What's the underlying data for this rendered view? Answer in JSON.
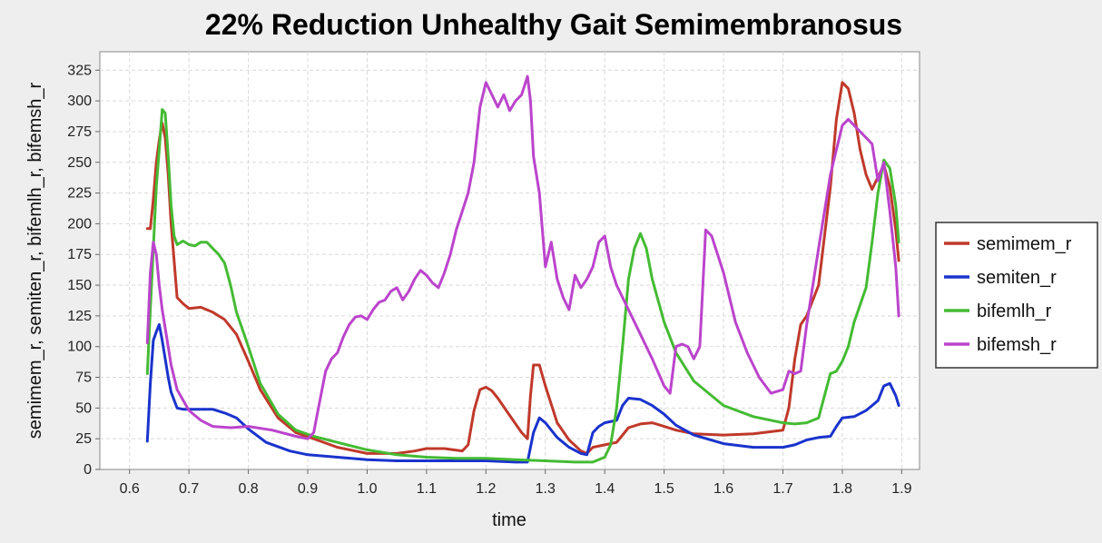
{
  "chart_data": {
    "type": "line",
    "title": "22% Reduction Unhealthy Gait Semimembranosus",
    "xlabel": "time",
    "ylabel": "semimem_r, semiten_r, bifemlh_r, bifemsh_r",
    "xlim": [
      0.55,
      1.93
    ],
    "ylim": [
      0,
      340
    ],
    "xticks": [
      0.6,
      0.7,
      0.8,
      0.9,
      1.0,
      1.1,
      1.2,
      1.3,
      1.4,
      1.5,
      1.6,
      1.7,
      1.8,
      1.9
    ],
    "xtick_labels": [
      "0.6",
      "0.7",
      "0.8",
      "0.9",
      "1.0",
      "1.1",
      "1.2",
      "1.3",
      "1.4",
      "1.5",
      "1.6",
      "1.7",
      "1.8",
      "1.9"
    ],
    "yticks": [
      0,
      25,
      50,
      75,
      100,
      125,
      150,
      175,
      200,
      225,
      250,
      275,
      300,
      325
    ],
    "ytick_labels": [
      "0",
      "25",
      "50",
      "75",
      "100",
      "125",
      "150",
      "175",
      "200",
      "225",
      "250",
      "275",
      "300",
      "325"
    ],
    "grid": true,
    "legend_position": "right",
    "series": [
      {
        "name": "semimem_r",
        "color": "#c0392b",
        "x": [
          0.63,
          0.635,
          0.64,
          0.645,
          0.65,
          0.655,
          0.66,
          0.665,
          0.67,
          0.68,
          0.69,
          0.7,
          0.72,
          0.74,
          0.76,
          0.78,
          0.8,
          0.82,
          0.85,
          0.88,
          0.91,
          0.95,
          1.0,
          1.05,
          1.08,
          1.1,
          1.13,
          1.16,
          1.17,
          1.18,
          1.19,
          1.2,
          1.21,
          1.22,
          1.24,
          1.26,
          1.27,
          1.275,
          1.28,
          1.29,
          1.3,
          1.32,
          1.34,
          1.36,
          1.37,
          1.38,
          1.4,
          1.42,
          1.44,
          1.46,
          1.48,
          1.5,
          1.52,
          1.55,
          1.6,
          1.65,
          1.7,
          1.71,
          1.72,
          1.73,
          1.74,
          1.76,
          1.78,
          1.79,
          1.8,
          1.81,
          1.82,
          1.83,
          1.84,
          1.85,
          1.86,
          1.87,
          1.88,
          1.89,
          1.895
        ],
        "y": [
          196,
          196,
          220,
          250,
          268,
          282,
          270,
          240,
          200,
          140,
          135,
          131,
          132,
          128,
          122,
          110,
          88,
          65,
          42,
          30,
          25,
          18,
          13,
          13,
          15,
          17,
          17,
          15,
          20,
          48,
          65,
          67,
          64,
          58,
          44,
          30,
          25,
          60,
          85,
          85,
          68,
          38,
          24,
          15,
          13,
          18,
          20,
          22,
          34,
          37,
          38,
          35,
          32,
          29,
          28,
          29,
          32,
          50,
          90,
          118,
          125,
          150,
          230,
          285,
          315,
          310,
          290,
          260,
          240,
          228,
          238,
          248,
          230,
          195,
          170
        ]
      },
      {
        "name": "semiten_r",
        "color": "#1a33cc",
        "x": [
          0.63,
          0.635,
          0.64,
          0.645,
          0.65,
          0.655,
          0.66,
          0.665,
          0.67,
          0.68,
          0.69,
          0.7,
          0.72,
          0.74,
          0.76,
          0.78,
          0.8,
          0.83,
          0.87,
          0.9,
          0.95,
          1.0,
          1.05,
          1.1,
          1.15,
          1.2,
          1.25,
          1.27,
          1.28,
          1.29,
          1.3,
          1.32,
          1.34,
          1.36,
          1.37,
          1.38,
          1.39,
          1.4,
          1.42,
          1.43,
          1.44,
          1.46,
          1.48,
          1.5,
          1.52,
          1.55,
          1.6,
          1.65,
          1.7,
          1.72,
          1.74,
          1.76,
          1.78,
          1.79,
          1.8,
          1.82,
          1.84,
          1.86,
          1.87,
          1.88,
          1.89,
          1.895
        ],
        "y": [
          23,
          70,
          105,
          112,
          118,
          105,
          90,
          75,
          63,
          50,
          49,
          49,
          49,
          49,
          46,
          42,
          33,
          22,
          15,
          12,
          10,
          8,
          7,
          7,
          7,
          7,
          6,
          6,
          30,
          42,
          38,
          26,
          18,
          13,
          12,
          30,
          35,
          38,
          40,
          52,
          58,
          57,
          52,
          45,
          36,
          28,
          21,
          18,
          18,
          20,
          24,
          26,
          27,
          35,
          42,
          43,
          48,
          56,
          68,
          70,
          60,
          52
        ]
      },
      {
        "name": "bifemlh_r",
        "color": "#44bb33",
        "x": [
          0.63,
          0.635,
          0.64,
          0.645,
          0.65,
          0.655,
          0.66,
          0.665,
          0.67,
          0.675,
          0.68,
          0.69,
          0.7,
          0.71,
          0.72,
          0.73,
          0.74,
          0.75,
          0.76,
          0.77,
          0.78,
          0.8,
          0.82,
          0.85,
          0.88,
          0.91,
          0.95,
          1.0,
          1.05,
          1.1,
          1.15,
          1.2,
          1.25,
          1.3,
          1.35,
          1.38,
          1.4,
          1.41,
          1.42,
          1.43,
          1.44,
          1.45,
          1.46,
          1.47,
          1.48,
          1.5,
          1.52,
          1.55,
          1.6,
          1.65,
          1.7,
          1.72,
          1.74,
          1.76,
          1.77,
          1.78,
          1.79,
          1.8,
          1.81,
          1.82,
          1.84,
          1.85,
          1.86,
          1.87,
          1.88,
          1.89,
          1.895
        ],
        "y": [
          78,
          130,
          180,
          230,
          260,
          293,
          290,
          255,
          215,
          190,
          183,
          186,
          183,
          182,
          185,
          185,
          180,
          175,
          168,
          150,
          128,
          100,
          70,
          45,
          32,
          27,
          22,
          16,
          12,
          10,
          9,
          9,
          8,
          7,
          6,
          6,
          10,
          20,
          50,
          100,
          155,
          180,
          192,
          180,
          155,
          120,
          95,
          72,
          52,
          43,
          38,
          37,
          38,
          42,
          60,
          78,
          80,
          88,
          100,
          120,
          148,
          185,
          225,
          252,
          245,
          215,
          185
        ]
      },
      {
        "name": "bifemsh_r",
        "color": "#bb44cc",
        "x": [
          0.63,
          0.635,
          0.64,
          0.645,
          0.65,
          0.655,
          0.66,
          0.665,
          0.67,
          0.68,
          0.7,
          0.72,
          0.74,
          0.77,
          0.8,
          0.84,
          0.88,
          0.9,
          0.91,
          0.92,
          0.93,
          0.94,
          0.95,
          0.96,
          0.97,
          0.98,
          0.99,
          1.0,
          1.01,
          1.02,
          1.03,
          1.04,
          1.05,
          1.06,
          1.07,
          1.08,
          1.09,
          1.1,
          1.11,
          1.12,
          1.13,
          1.14,
          1.15,
          1.16,
          1.17,
          1.18,
          1.19,
          1.2,
          1.21,
          1.22,
          1.23,
          1.24,
          1.25,
          1.26,
          1.27,
          1.275,
          1.28,
          1.29,
          1.3,
          1.31,
          1.32,
          1.33,
          1.34,
          1.35,
          1.36,
          1.37,
          1.38,
          1.39,
          1.4,
          1.41,
          1.42,
          1.44,
          1.46,
          1.48,
          1.5,
          1.51,
          1.52,
          1.53,
          1.54,
          1.55,
          1.56,
          1.57,
          1.58,
          1.6,
          1.62,
          1.64,
          1.66,
          1.68,
          1.7,
          1.71,
          1.72,
          1.73,
          1.74,
          1.76,
          1.78,
          1.8,
          1.81,
          1.83,
          1.85,
          1.86,
          1.87,
          1.88,
          1.89,
          1.895
        ],
        "y": [
          103,
          160,
          185,
          175,
          150,
          130,
          115,
          100,
          85,
          65,
          48,
          40,
          35,
          34,
          35,
          32,
          27,
          25,
          30,
          55,
          80,
          90,
          95,
          108,
          118,
          124,
          125,
          122,
          130,
          136,
          138,
          145,
          148,
          138,
          145,
          155,
          162,
          158,
          152,
          148,
          160,
          175,
          195,
          210,
          225,
          250,
          295,
          315,
          305,
          295,
          305,
          292,
          300,
          305,
          320,
          300,
          255,
          225,
          165,
          185,
          155,
          140,
          130,
          158,
          148,
          155,
          165,
          185,
          190,
          165,
          150,
          130,
          110,
          90,
          68,
          62,
          100,
          102,
          100,
          90,
          100,
          195,
          190,
          160,
          120,
          95,
          75,
          62,
          65,
          80,
          78,
          80,
          118,
          180,
          240,
          280,
          285,
          275,
          265,
          235,
          250,
          210,
          165,
          125
        ]
      }
    ]
  }
}
